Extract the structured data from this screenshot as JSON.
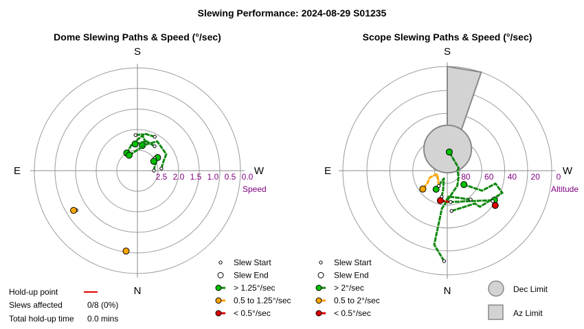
{
  "title": "Slewing Performance: 2024-08-29 S01235",
  "colors": {
    "ring": "#9a9a9a",
    "axis": "#888888",
    "tick_label": "#800080",
    "fast": "#00c000",
    "fast_path": "#118811",
    "medium": "#ffa500",
    "slow": "#dd0000",
    "limit_fill": "#d3d3d3",
    "limit_edge": "#888888"
  },
  "chart_data": [
    {
      "type": "polar",
      "title": "Dome Slewing Paths & Speed (°/sec)",
      "directions": {
        "top": "S",
        "bottom": "N",
        "left": "E",
        "right": "W"
      },
      "radial_axis_label": "Speed",
      "radial_ticks": [
        "2.5",
        "2.0",
        "1.5",
        "1.0",
        "0.5",
        "0.0"
      ],
      "radial_range": [
        3.0,
        0.0
      ],
      "slews": [
        {
          "speed_class": "fast",
          "path": [
            [
              275,
              2.3
            ],
            [
              289,
              2.2
            ],
            [
              300,
              2.03
            ],
            [
              326,
              1.97
            ],
            [
              349,
              2.25
            ]
          ]
        },
        {
          "speed_class": "fast",
          "path": [
            [
              333,
              1.89
            ],
            [
              349,
              1.9
            ],
            [
              13,
              2.23
            ],
            [
              31,
              2.4
            ]
          ]
        },
        {
          "speed_class": "fast",
          "path": [
            [
              325,
              2.13
            ],
            [
              343,
              2.1
            ],
            [
              5,
              2.22
            ]
          ]
        },
        {
          "speed_class": "fast",
          "path": [
            [
              270,
              2.52
            ],
            [
              282,
              2.49
            ],
            [
              303,
              2.3
            ]
          ]
        },
        {
          "speed_class": "fast",
          "path": [
            [
              306,
              2.38
            ],
            [
              300,
              2.45
            ]
          ]
        },
        {
          "speed_class": "fast",
          "path": [
            [
              3,
              1.96
            ],
            [
              353,
              1.93
            ],
            [
              341,
              2.18
            ],
            [
              28,
              2.49
            ]
          ]
        },
        {
          "speed_class": "medium",
          "path": [
            [
              171,
              0.62
            ],
            [
              172,
              0.63
            ]
          ]
        },
        {
          "speed_class": "medium",
          "path": [
            [
              123,
              0.88
            ],
            [
              122,
              0.81
            ]
          ]
        }
      ]
    },
    {
      "type": "polar",
      "title": "Scope Slewing Paths & Speed (°/sec)",
      "directions": {
        "top": "S",
        "bottom": "N",
        "left": "E",
        "right": "W"
      },
      "radial_axis_label": "Altitude",
      "radial_ticks": [
        "80",
        "60",
        "40",
        "20",
        "0"
      ],
      "radial_range": [
        90,
        0
      ],
      "dec_limit_circle": {
        "az": 359,
        "alt": 71.3,
        "radius_deg": 20.5
      },
      "az_limit_wedge": {
        "az_from": 341,
        "az_to": 360,
        "alt_from": 61,
        "alt_to": 0
      },
      "slews": [
        {
          "speed_class": "fast",
          "path": [
            [
              178,
              11.8
            ],
            [
              170,
              25.1
            ],
            [
              172,
              57
            ],
            [
              214,
              74.4
            ],
            [
              240,
              78.8
            ],
            [
              272,
              81.2
            ],
            [
              283,
              79.9
            ],
            [
              354,
              73.8
            ]
          ]
        },
        {
          "speed_class": "fast",
          "path": [
            [
              186,
              55
            ],
            [
              220,
              53
            ],
            [
              222,
              48
            ],
            [
              248,
              38.8
            ],
            [
              255,
              47
            ],
            [
              240,
              55.4
            ],
            [
              230,
              71.3
            ]
          ]
        },
        {
          "speed_class": "fast",
          "path": [
            [
              168,
              67
            ],
            [
              168,
              73
            ],
            [
              157,
              82.6
            ],
            [
              149,
              71.3
            ]
          ]
        },
        {
          "speed_class": "fast",
          "path": [
            [
              219,
              58
            ],
            [
              183,
              67.6
            ],
            [
              176,
              62.7
            ],
            [
              238,
              42
            ]
          ]
        },
        {
          "speed_class": "medium",
          "path": [
            [
              151,
              74.9
            ],
            [
              114,
              80.8
            ],
            [
              108,
              79.7
            ],
            [
              112,
              73.6
            ],
            [
              122,
              69.9
            ],
            [
              127,
              63.6
            ]
          ]
        },
        {
          "speed_class": "slow",
          "path": [
            [
              186,
              62.8
            ],
            [
              167,
              63.5
            ]
          ]
        },
        {
          "speed_class": "slow",
          "path": [
            [
              236,
              42.8
            ],
            [
              234,
              38.9
            ]
          ]
        }
      ]
    }
  ],
  "left_legend": [
    {
      "label": "Slew Start",
      "marker": "start"
    },
    {
      "label": "Slew End",
      "marker": "end"
    },
    {
      "label": "> 1.25°/sec",
      "marker": "fast"
    },
    {
      "label": "0.5 to 1.25°/sec",
      "marker": "medium"
    },
    {
      "label": "< 0.5°/sec",
      "marker": "slow"
    }
  ],
  "right_legend": [
    {
      "label": "Slew Start",
      "marker": "start"
    },
    {
      "label": "Slew End",
      "marker": "end"
    },
    {
      "label": "> 2°/sec",
      "marker": "fast"
    },
    {
      "label": "0.5 to 2°/sec",
      "marker": "medium"
    },
    {
      "label": "< 0.5°/sec",
      "marker": "slow"
    }
  ],
  "limit_legend": {
    "dec": "Dec Limit",
    "az": "Az Limit"
  },
  "stats": {
    "holdup_label": "Hold-up point",
    "slews_label": "Slews affected",
    "slews_value": "0/8 (0%)",
    "total_label": "Total hold-up time",
    "total_value": "0.0 mins"
  }
}
